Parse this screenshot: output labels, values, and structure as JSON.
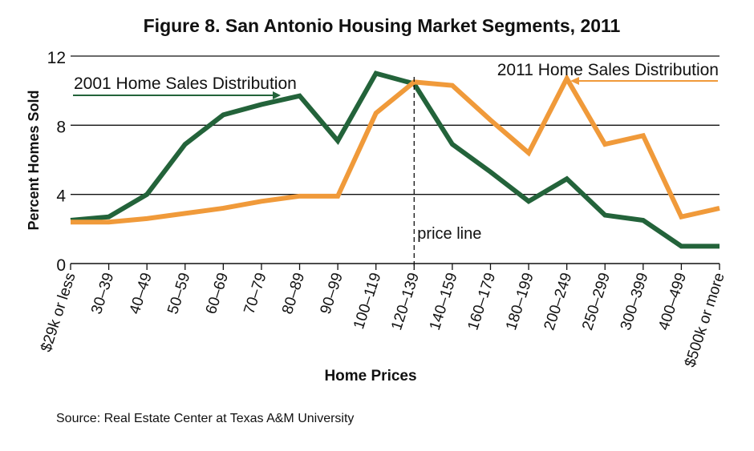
{
  "chart_data": {
    "type": "line",
    "title": "Figure 8. San Antonio Housing Market Segments, 2011",
    "xlabel": "Home Prices",
    "ylabel": "Percent Homes Sold",
    "ylim": [
      0,
      12
    ],
    "yticks": [
      0,
      4,
      8,
      12
    ],
    "grid": true,
    "categories": [
      "$29k or less",
      "30–39",
      "40–49",
      "50–59",
      "60–69",
      "70–79",
      "80–89",
      "90–99",
      "100–119",
      "120–139",
      "140–159",
      "160–179",
      "180–199",
      "200–249",
      "250–299",
      "300–399",
      "400–499",
      "$500k or more"
    ],
    "series": [
      {
        "name": "2001 Home Sales Distribution",
        "color": "#23633a",
        "values": [
          2.5,
          2.7,
          4.0,
          6.9,
          8.6,
          9.2,
          9.7,
          7.1,
          11.0,
          10.4,
          6.9,
          5.3,
          3.6,
          4.9,
          2.8,
          2.5,
          1.0,
          1.0
        ]
      },
      {
        "name": "2011 Home Sales Distribution",
        "color": "#f09a3a",
        "values": [
          2.4,
          2.4,
          2.6,
          2.9,
          3.2,
          3.6,
          3.9,
          3.9,
          8.7,
          10.5,
          10.3,
          8.3,
          6.4,
          10.7,
          6.9,
          7.4,
          2.7,
          3.2
        ]
      }
    ],
    "annotations": {
      "price_line_label": "price line",
      "price_line_category": "120–139"
    },
    "source": "Source: Real Estate Center at Texas A&M University"
  }
}
